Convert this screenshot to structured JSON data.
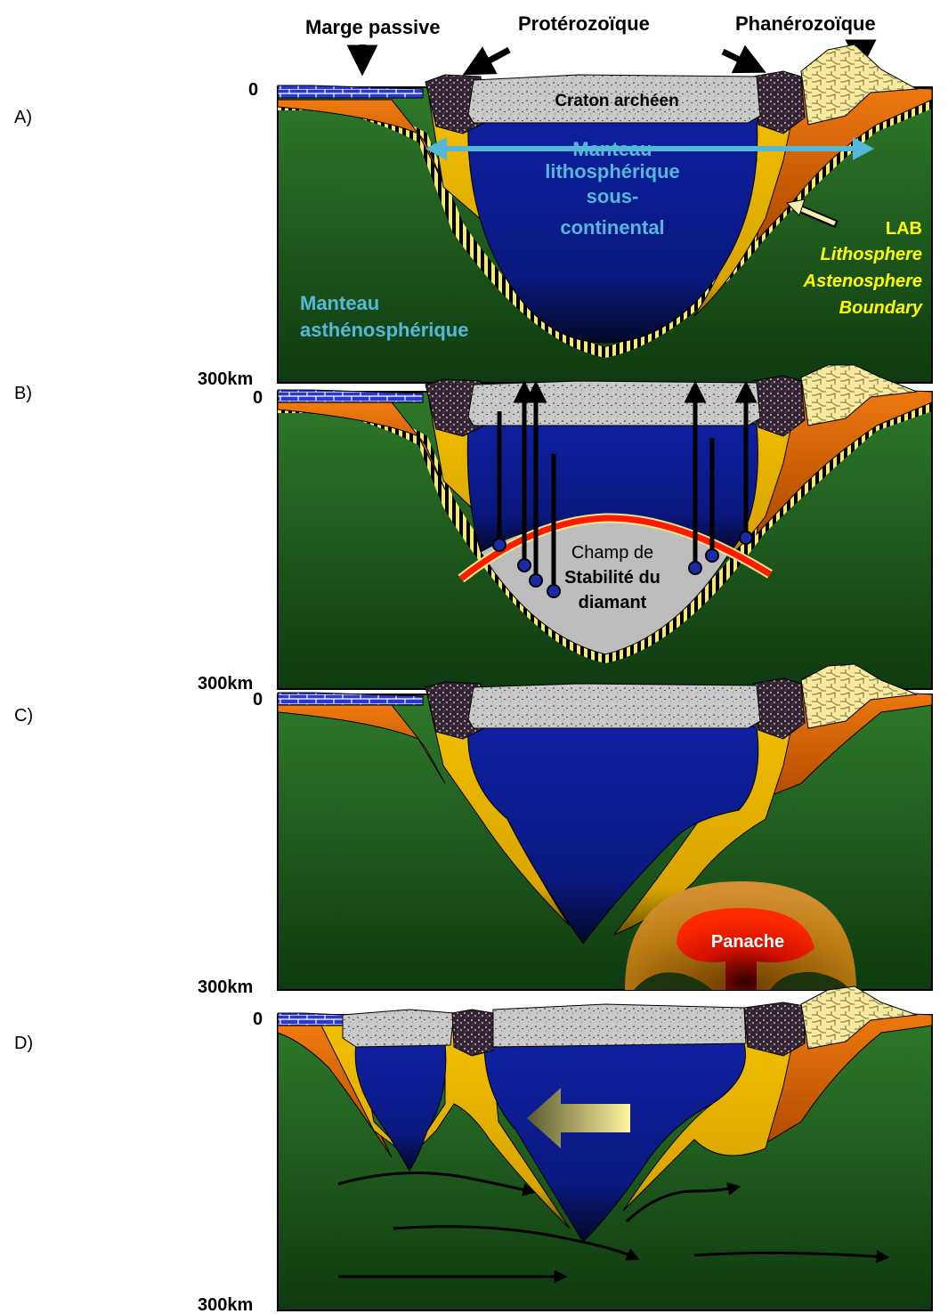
{
  "panel_labels": [
    "A)",
    "B)",
    "C)",
    "D)"
  ],
  "depth_top": "0",
  "depth_bottom": "300km",
  "top_labels": {
    "passive_margin": "Marge passive",
    "proterozoic": "Protérozoïque",
    "phanerozoic": "Phanérozoïque"
  },
  "panel_a": {
    "craton": "Craton archéen",
    "lith_mantle": [
      "Manteau",
      "lithosphérique",
      "sous-",
      "continental"
    ],
    "asth_mantle": [
      "Manteau",
      "asthénosphérique"
    ],
    "lab_title": "LAB",
    "lab_def": [
      "Lithosphere",
      "Astenosphere",
      "Boundary"
    ]
  },
  "panel_b": {
    "diamond": [
      "Champ de",
      "Stabilité du",
      "diamant"
    ]
  },
  "panel_c": {
    "plume": "Panache"
  },
  "colors": {
    "asthenosphere": "#1a5a1a",
    "craton_mantle": "#0f1f8a",
    "proterozoic_mantle": "#e8b400",
    "phanerozoic_mantle": "#e86a00",
    "lab_yellow": "#f0e060",
    "plume_red": "#ff1a00",
    "arrow_cyan": "#55b8d8",
    "lab_text": "#ffff00"
  }
}
